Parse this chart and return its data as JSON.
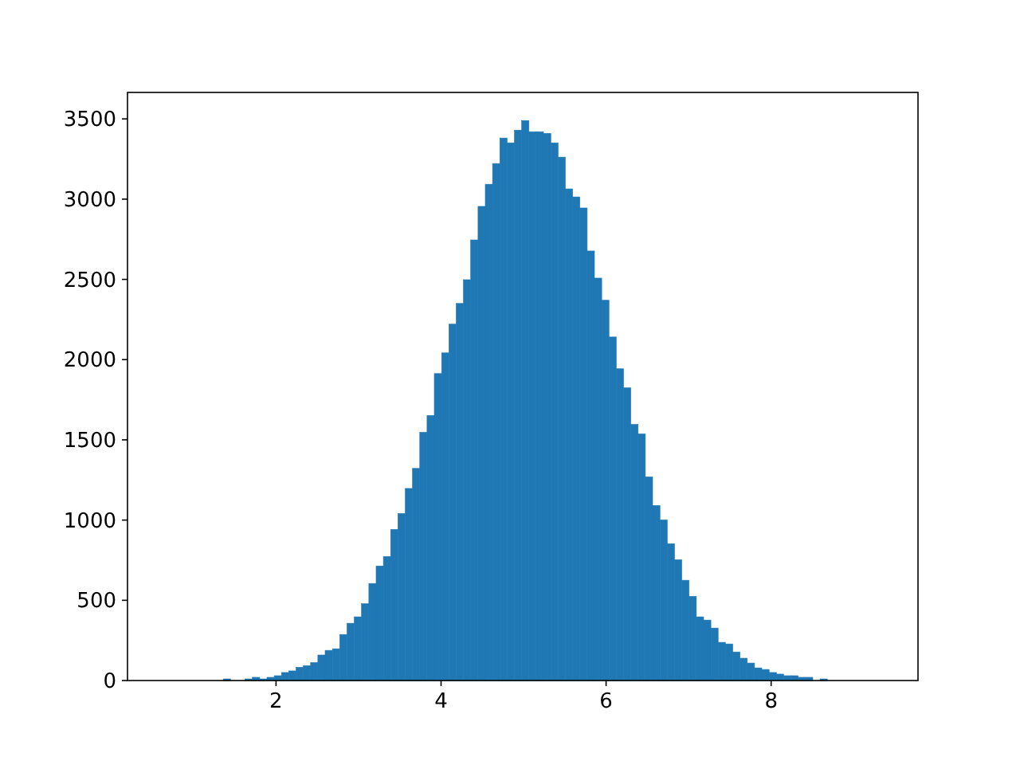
{
  "chart_data": {
    "type": "histogram",
    "bins": [
      0.655,
      0.743,
      0.831,
      0.92,
      1.008,
      1.096,
      1.184,
      1.272,
      1.361,
      1.449,
      1.537,
      1.625,
      1.713,
      1.802,
      1.89,
      1.978,
      2.066,
      2.154,
      2.243,
      2.331,
      2.419,
      2.507,
      2.595,
      2.684,
      2.772,
      2.86,
      2.948,
      3.036,
      3.125,
      3.213,
      3.301,
      3.389,
      3.477,
      3.566,
      3.654,
      3.742,
      3.83,
      3.918,
      4.007,
      4.095,
      4.183,
      4.271,
      4.359,
      4.448,
      4.536,
      4.624,
      4.712,
      4.8,
      4.889,
      4.977,
      5.065,
      5.153,
      5.241,
      5.33,
      5.418,
      5.506,
      5.594,
      5.682,
      5.771,
      5.859,
      5.947,
      6.035,
      6.123,
      6.212,
      6.3,
      6.388,
      6.476,
      6.564,
      6.653,
      6.741,
      6.829,
      6.917,
      7.005,
      7.094,
      7.182,
      7.27,
      7.358,
      7.446,
      7.535,
      7.623,
      7.711,
      7.799,
      7.887,
      7.976,
      8.064,
      8.152,
      8.24,
      8.328,
      8.417,
      8.505,
      8.593,
      8.681,
      8.769,
      8.858,
      8.946,
      9.034,
      9.122,
      9.21,
      9.299,
      9.387,
      9.475
    ],
    "values": [
      0,
      0,
      0,
      0,
      0,
      0,
      0,
      0,
      10,
      0,
      0,
      10,
      20,
      10,
      20,
      30,
      50,
      60,
      83,
      93,
      112,
      159,
      188,
      198,
      287,
      357,
      397,
      479,
      605,
      714,
      773,
      942,
      1041,
      1197,
      1322,
      1547,
      1652,
      1913,
      2042,
      2221,
      2350,
      2498,
      2746,
      2955,
      3093,
      3222,
      3381,
      3351,
      3430,
      3490,
      3420,
      3420,
      3410,
      3351,
      3262,
      3064,
      3014,
      2945,
      2677,
      2508,
      2370,
      2141,
      1943,
      1824,
      1596,
      1537,
      1269,
      1091,
      1001,
      853,
      753,
      625,
      525,
      397,
      377,
      327,
      238,
      228,
      178,
      139,
      109,
      79,
      69,
      50,
      40,
      30,
      30,
      20,
      20,
      0,
      10,
      0,
      0,
      0,
      0,
      0,
      0,
      0,
      0,
      0
    ],
    "color": "#1f77b4",
    "xlim": [
      0.2,
      9.78
    ],
    "ylim": [
      0,
      3665
    ],
    "xticks": [
      2,
      4,
      6,
      8
    ],
    "yticks": [
      0,
      500,
      1000,
      1500,
      2000,
      2500,
      3000,
      3500
    ]
  }
}
